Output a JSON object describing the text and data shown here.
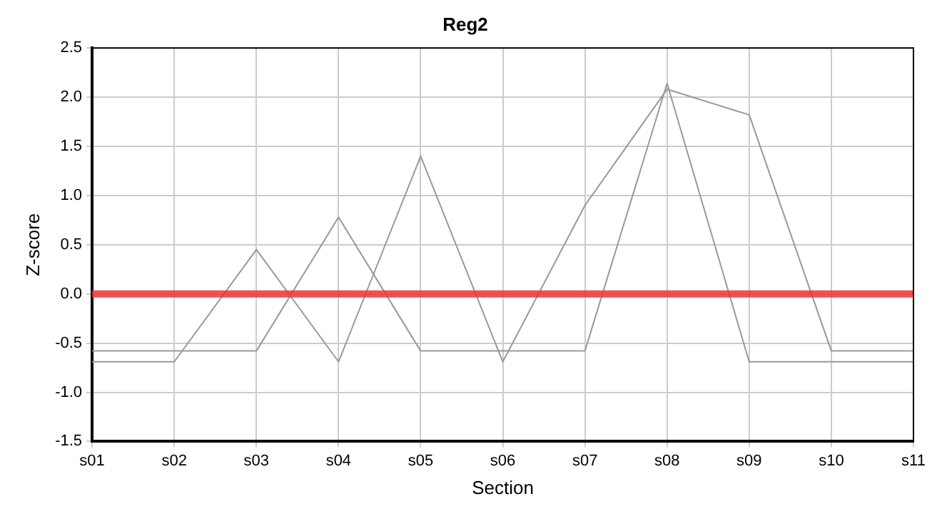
{
  "chart_data": {
    "type": "line",
    "title": "Reg2",
    "xlabel": "Section",
    "ylabel": "Z-score",
    "categories": [
      "s01",
      "s02",
      "s03",
      "s04",
      "s05",
      "s06",
      "s07",
      "s08",
      "s09",
      "s10",
      "s11"
    ],
    "series": [
      {
        "color": "#999999",
        "values": [
          -0.58,
          -0.58,
          -0.58,
          0.78,
          -0.58,
          -0.58,
          -0.58,
          2.14,
          -0.69,
          -0.69,
          -0.69
        ]
      },
      {
        "color": "#999999",
        "values": [
          -0.69,
          -0.69,
          0.45,
          -0.69,
          1.4,
          -0.69,
          0.9,
          2.08,
          1.82,
          -0.58,
          -0.58
        ]
      }
    ],
    "ylim": [
      -1.5,
      2.5
    ],
    "yticks": [
      -1.5,
      {
        "value": -1,
        "label": "-1.0"
      },
      -0.5,
      {
        "value": 0,
        "label": "0.0"
      },
      0.5,
      {
        "value": 1,
        "label": "1.0"
      },
      1.5,
      {
        "value": 2,
        "label": "2.0"
      },
      2.5
    ],
    "ref_lines": [
      {
        "axis": "y",
        "value": 0,
        "color": "#ee3333"
      }
    ],
    "grid": true,
    "legend": false,
    "marker": "none",
    "line_style": "solid"
  }
}
